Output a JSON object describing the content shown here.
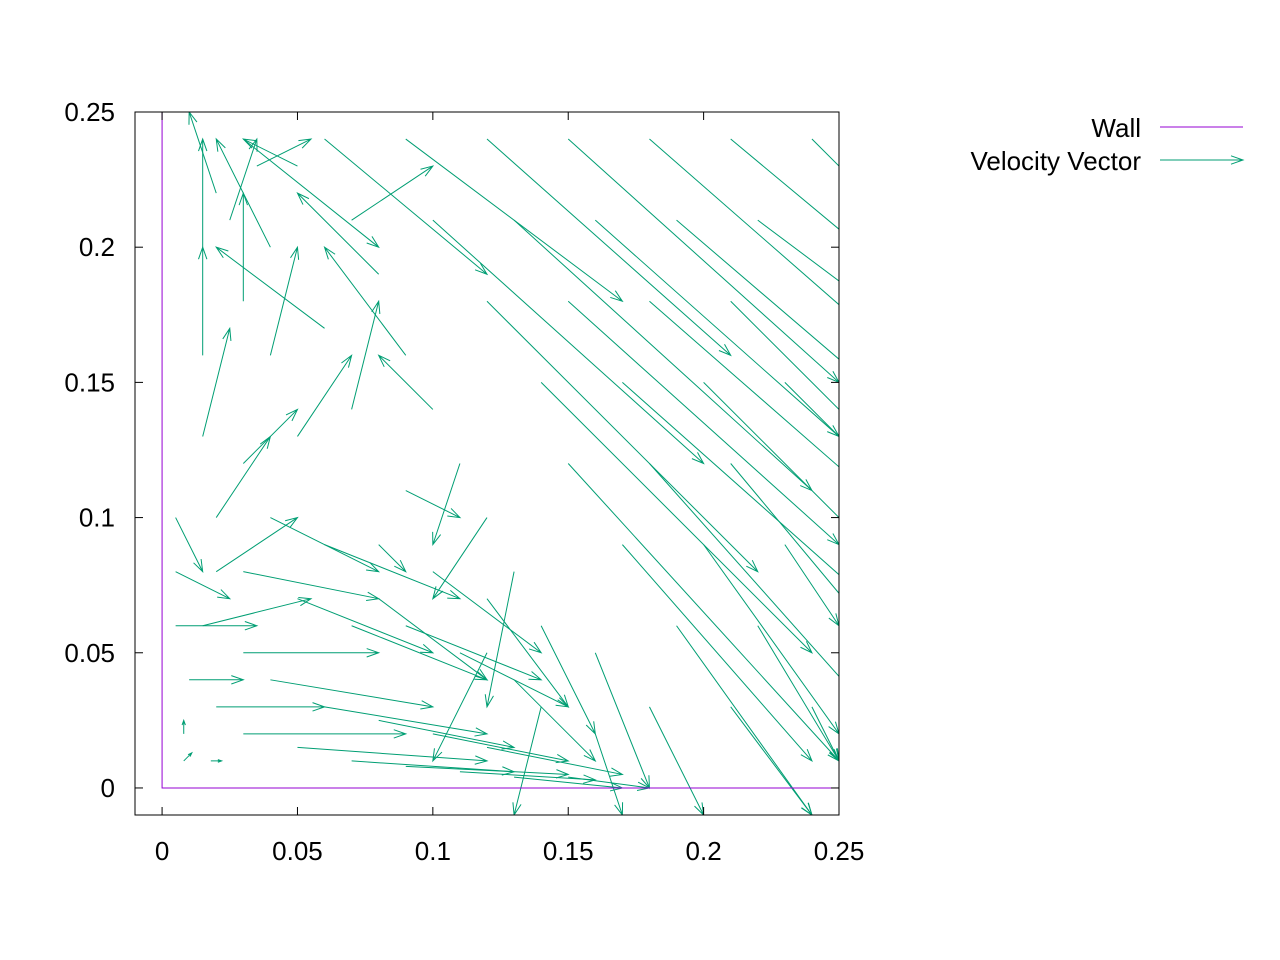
{
  "chart_data": {
    "type": "vector-field",
    "title": "",
    "xlabel": "",
    "ylabel": "",
    "xlim": [
      -0.01,
      0.25
    ],
    "ylim": [
      -0.01,
      0.25
    ],
    "x_ticks": [
      "0",
      "0.05",
      "0.1",
      "0.15",
      "0.2",
      "0.25"
    ],
    "x_tick_values": [
      0,
      0.05,
      0.1,
      0.15,
      0.2,
      0.25
    ],
    "y_ticks": [
      "0",
      "0.05",
      "0.1",
      "0.15",
      "0.2",
      "0.25"
    ],
    "y_tick_values": [
      0,
      0.05,
      0.1,
      0.15,
      0.2,
      0.25
    ],
    "grid": false,
    "legend_position": "outside-top-right",
    "series": [
      {
        "name": "Wall",
        "kind": "line",
        "color": "#9400d3",
        "points": [
          [
            0,
            0.25
          ],
          [
            0,
            0
          ],
          [
            0.25,
            0
          ]
        ]
      },
      {
        "name": "Velocity Vector",
        "kind": "vectors",
        "color": "#009e73",
        "vectors": [
          [
            0.03,
            0.24,
            0.05,
            -0.04
          ],
          [
            0.06,
            0.24,
            0.06,
            -0.05
          ],
          [
            0.09,
            0.24,
            0.08,
            -0.06
          ],
          [
            0.12,
            0.24,
            0.09,
            -0.08
          ],
          [
            0.15,
            0.24,
            0.1,
            -0.09
          ],
          [
            0.18,
            0.24,
            0.08,
            -0.07
          ],
          [
            0.21,
            0.24,
            0.06,
            -0.05
          ],
          [
            0.24,
            0.24,
            0.02,
            -0.02
          ],
          [
            0.1,
            0.21,
            0.1,
            -0.09
          ],
          [
            0.13,
            0.21,
            0.11,
            -0.1
          ],
          [
            0.16,
            0.21,
            0.09,
            -0.08
          ],
          [
            0.19,
            0.21,
            0.07,
            -0.06
          ],
          [
            0.22,
            0.21,
            0.04,
            -0.03
          ],
          [
            0.12,
            0.18,
            0.1,
            -0.1
          ],
          [
            0.15,
            0.18,
            0.1,
            -0.09
          ],
          [
            0.18,
            0.18,
            0.08,
            -0.07
          ],
          [
            0.21,
            0.18,
            0.05,
            -0.05
          ],
          [
            0.14,
            0.15,
            0.1,
            -0.1
          ],
          [
            0.17,
            0.15,
            0.09,
            -0.08
          ],
          [
            0.2,
            0.15,
            0.06,
            -0.06
          ],
          [
            0.23,
            0.15,
            0.03,
            -0.03
          ],
          [
            0.15,
            0.12,
            0.1,
            -0.11
          ],
          [
            0.18,
            0.12,
            0.08,
            -0.09
          ],
          [
            0.21,
            0.12,
            0.05,
            -0.06
          ],
          [
            0.17,
            0.09,
            0.07,
            -0.08
          ],
          [
            0.2,
            0.09,
            0.05,
            -0.07
          ],
          [
            0.23,
            0.09,
            0.02,
            -0.03
          ],
          [
            0.19,
            0.06,
            0.05,
            -0.07
          ],
          [
            0.22,
            0.06,
            0.03,
            -0.05
          ],
          [
            0.21,
            0.03,
            0.03,
            -0.04
          ],
          [
            0.24,
            0.03,
            0.01,
            -0.02
          ],
          [
            0.02,
            0.22,
            -0.01,
            0.03
          ],
          [
            0.04,
            0.2,
            -0.02,
            0.04
          ],
          [
            0.07,
            0.21,
            0.03,
            0.02
          ],
          [
            0.05,
            0.23,
            -0.02,
            0.01
          ],
          [
            0.08,
            0.19,
            -0.03,
            0.03
          ],
          [
            0.06,
            0.17,
            -0.04,
            0.03
          ],
          [
            0.09,
            0.16,
            -0.03,
            0.04
          ],
          [
            0.07,
            0.14,
            0.01,
            0.04
          ],
          [
            0.1,
            0.14,
            -0.02,
            0.02
          ],
          [
            0.09,
            0.11,
            0.02,
            -0.01
          ],
          [
            0.11,
            0.12,
            -0.01,
            -0.03
          ],
          [
            0.12,
            0.1,
            -0.02,
            -0.03
          ],
          [
            0.08,
            0.09,
            0.01,
            -0.01
          ],
          [
            0.015,
            0.2,
            0.0,
            0.04
          ],
          [
            0.015,
            0.16,
            0.0,
            0.04
          ],
          [
            0.015,
            0.13,
            0.01,
            0.04
          ],
          [
            0.02,
            0.1,
            0.02,
            0.03
          ],
          [
            0.02,
            0.08,
            0.03,
            0.02
          ],
          [
            0.015,
            0.06,
            0.04,
            0.01
          ],
          [
            0.03,
            0.05,
            0.05,
            0.0
          ],
          [
            0.04,
            0.04,
            0.06,
            -0.01
          ],
          [
            0.06,
            0.03,
            0.06,
            -0.01
          ],
          [
            0.08,
            0.025,
            0.05,
            -0.01
          ],
          [
            0.1,
            0.02,
            0.05,
            -0.01
          ],
          [
            0.12,
            0.015,
            0.05,
            -0.01
          ],
          [
            0.03,
            0.08,
            0.05,
            -0.01
          ],
          [
            0.05,
            0.07,
            0.05,
            -0.02
          ],
          [
            0.07,
            0.06,
            0.05,
            -0.02
          ],
          [
            0.09,
            0.06,
            0.05,
            -0.02
          ],
          [
            0.11,
            0.05,
            0.04,
            -0.02
          ],
          [
            0.13,
            0.04,
            0.03,
            -0.03
          ],
          [
            0.04,
            0.1,
            0.04,
            -0.02
          ],
          [
            0.06,
            0.09,
            0.05,
            -0.02
          ],
          [
            0.08,
            0.07,
            0.04,
            -0.03
          ],
          [
            0.1,
            0.08,
            0.04,
            -0.03
          ],
          [
            0.12,
            0.07,
            0.03,
            -0.04
          ],
          [
            0.14,
            0.06,
            0.02,
            -0.04
          ],
          [
            0.03,
            0.12,
            0.02,
            0.02
          ],
          [
            0.05,
            0.13,
            0.02,
            0.03
          ],
          [
            0.04,
            0.16,
            0.01,
            0.04
          ],
          [
            0.03,
            0.18,
            0.0,
            0.04
          ],
          [
            0.025,
            0.21,
            0.01,
            0.03
          ],
          [
            0.035,
            0.23,
            0.02,
            0.01
          ],
          [
            0.005,
            0.1,
            0.01,
            -0.02
          ],
          [
            0.005,
            0.08,
            0.02,
            -0.01
          ],
          [
            0.005,
            0.06,
            0.03,
            0.0
          ],
          [
            0.01,
            0.04,
            0.02,
            0.0
          ],
          [
            0.02,
            0.03,
            0.04,
            0.0
          ],
          [
            0.03,
            0.02,
            0.06,
            0.0
          ],
          [
            0.05,
            0.015,
            0.07,
            -0.005
          ],
          [
            0.07,
            0.01,
            0.06,
            -0.004
          ],
          [
            0.09,
            0.008,
            0.06,
            -0.003
          ],
          [
            0.11,
            0.006,
            0.05,
            -0.003
          ],
          [
            0.13,
            0.004,
            0.04,
            -0.004
          ],
          [
            0.15,
            0.004,
            0.03,
            -0.004
          ],
          [
            0.008,
            0.02,
            0.0,
            0.005
          ],
          [
            0.008,
            0.01,
            0.003,
            0.003
          ],
          [
            0.018,
            0.01,
            0.004,
            0.0
          ],
          [
            0.16,
            0.02,
            0.01,
            -0.03
          ],
          [
            0.14,
            0.03,
            -0.01,
            -0.04
          ],
          [
            0.18,
            0.03,
            0.02,
            -0.04
          ],
          [
            0.16,
            0.05,
            0.02,
            -0.05
          ],
          [
            0.13,
            0.08,
            -0.01,
            -0.05
          ],
          [
            0.12,
            0.05,
            -0.02,
            -0.04
          ]
        ]
      }
    ]
  }
}
